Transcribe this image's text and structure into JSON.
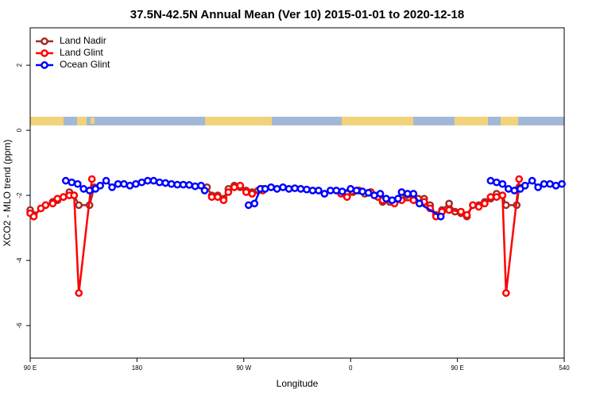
{
  "chart_data": {
    "type": "line",
    "title": "37.5N-42.5N Annual Mean (Ver 10)   2015-01-01 to 2020-12-18",
    "x_label": "Longitude",
    "y_label": "XCO2 - MLO trend (ppm)",
    "xlim": [
      90,
      540
    ],
    "ylim": [
      -7,
      3.15
    ],
    "xticks": [
      {
        "value": 90,
        "label": "90 E"
      },
      180,
      {
        "value": 270,
        "label": "90 W"
      },
      {
        "value": 360,
        "label": "0"
      },
      {
        "value": 450,
        "label": "90 E"
      },
      540
    ],
    "yticks": [
      -6,
      -4,
      -2,
      0,
      2
    ],
    "legend": "top-left",
    "series": [
      {
        "name": "Land Nadir",
        "color": "#a52a2a",
        "x": [
          90,
          93,
          103,
          109,
          113,
          118,
          123,
          127,
          131,
          140,
          144,
          null,
          239,
          243,
          248,
          253,
          257,
          262,
          267,
          272,
          277,
          282,
          286,
          null,
          352,
          357,
          362,
          367,
          372,
          377,
          383,
          387,
          393,
          397,
          403,
          407,
          413,
          417,
          422,
          427,
          432,
          437,
          443,
          448,
          453,
          458,
          463,
          468,
          473,
          478,
          483,
          488,
          491,
          500,
          502
        ],
        "values": [
          -2.45,
          -2.6,
          -2.3,
          -2.2,
          -2.15,
          -2.05,
          -1.9,
          -2.0,
          -2.3,
          -2.3,
          -1.75,
          null,
          -1.75,
          -2.0,
          -2.0,
          -2.1,
          -1.8,
          -1.7,
          -1.75,
          -1.85,
          -1.9,
          -1.85,
          -1.8,
          null,
          -1.9,
          -1.95,
          -1.9,
          -1.85,
          -1.95,
          -1.9,
          -2.0,
          -2.2,
          -2.2,
          -2.2,
          -2.05,
          -2.0,
          -2.1,
          -2.1,
          -2.1,
          -2.3,
          -2.6,
          -2.45,
          -2.25,
          -2.5,
          -2.55,
          -2.65,
          -2.3,
          -2.3,
          -2.2,
          -2.1,
          -1.95,
          -2.0,
          -2.3,
          -2.3,
          -1.75
        ]
      },
      {
        "name": "Land Glint",
        "color": "#ff0000",
        "x": [
          90,
          93,
          99,
          103,
          109,
          113,
          118,
          123,
          127,
          131,
          142,
          null,
          243,
          248,
          253,
          257,
          262,
          267,
          272,
          277,
          286,
          null,
          352,
          357,
          367,
          377,
          383,
          387,
          397,
          403,
          413,
          422,
          427,
          432,
          437,
          443,
          453,
          458,
          463,
          468,
          473,
          478,
          483,
          488,
          491,
          502
        ],
        "values": [
          -2.55,
          -2.65,
          -2.4,
          -2.3,
          -2.25,
          -2.1,
          -2.05,
          -2.0,
          -2.0,
          -5.0,
          -1.5,
          null,
          -2.05,
          -2.05,
          -2.15,
          -1.9,
          -1.75,
          -1.7,
          -1.9,
          -1.95,
          -1.85,
          null,
          -1.95,
          -2.05,
          -1.85,
          -1.9,
          -2.05,
          -2.15,
          -2.25,
          -2.15,
          -2.15,
          -2.2,
          -2.4,
          -2.65,
          -2.5,
          -2.45,
          -2.5,
          -2.6,
          -2.3,
          -2.35,
          -2.25,
          -2.05,
          -2.05,
          -2.0,
          -5.0,
          -1.5
        ]
      },
      {
        "name": "Ocean Glint",
        "color": "#0000ff",
        "x": [
          120,
          125,
          130,
          135,
          140,
          145,
          149,
          154,
          159,
          164,
          169,
          174,
          179,
          184,
          189,
          194,
          199,
          204,
          209,
          214,
          219,
          224,
          229,
          234,
          237,
          null,
          274,
          279,
          284,
          288,
          293,
          298,
          303,
          308,
          313,
          318,
          323,
          328,
          333,
          338,
          343,
          348,
          353,
          360,
          365,
          370,
          375,
          380,
          385,
          390,
          395,
          400,
          403,
          408,
          413,
          418,
          436,
          null,
          478,
          483,
          488,
          493,
          498,
          503,
          507,
          513,
          518,
          523,
          528,
          533,
          538
        ],
        "values": [
          -1.55,
          -1.6,
          -1.65,
          -1.8,
          -1.85,
          -1.8,
          -1.7,
          -1.55,
          -1.75,
          -1.65,
          -1.65,
          -1.7,
          -1.65,
          -1.6,
          -1.55,
          -1.55,
          -1.6,
          -1.62,
          -1.65,
          -1.67,
          -1.67,
          -1.68,
          -1.72,
          -1.7,
          -1.85,
          null,
          -2.3,
          -2.25,
          -1.8,
          -1.8,
          -1.75,
          -1.8,
          -1.75,
          -1.8,
          -1.78,
          -1.8,
          -1.82,
          -1.85,
          -1.85,
          -1.95,
          -1.85,
          -1.85,
          -1.88,
          -1.8,
          -1.85,
          -1.88,
          -1.92,
          -2.0,
          -1.95,
          -2.1,
          -2.15,
          -2.1,
          -1.9,
          -1.95,
          -1.95,
          -2.25,
          -2.65,
          null,
          -1.55,
          -1.6,
          -1.65,
          -1.8,
          -1.85,
          -1.8,
          -1.7,
          -1.55,
          -1.75,
          -1.65,
          -1.65,
          -1.7,
          -1.65
        ]
      }
    ]
  }
}
